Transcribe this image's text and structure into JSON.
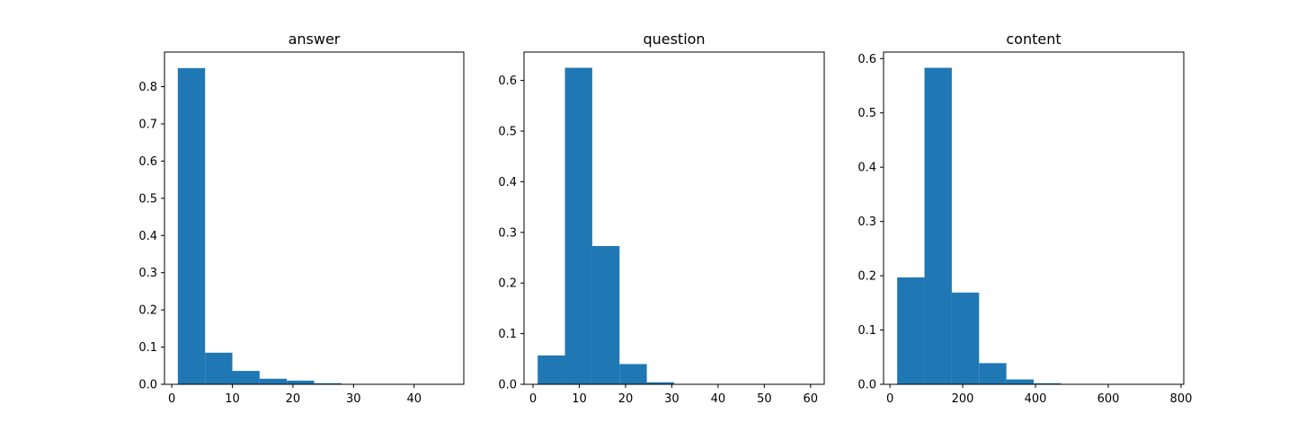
{
  "chart_data": [
    {
      "type": "bar",
      "title": "answer",
      "xlabel": "",
      "ylabel": "",
      "bins": [
        [
          1.0,
          5.5,
          0.85
        ],
        [
          5.5,
          10.0,
          0.085
        ],
        [
          10.0,
          14.5,
          0.036
        ],
        [
          14.5,
          19.0,
          0.015
        ],
        [
          19.0,
          23.5,
          0.01
        ],
        [
          23.5,
          28.0,
          0.003
        ],
        [
          28.0,
          32.5,
          0.0005
        ],
        [
          32.5,
          37.0,
          0.0002
        ],
        [
          37.0,
          41.5,
          0.0001
        ],
        [
          41.5,
          46.0,
          0.0001
        ]
      ],
      "xlim": [
        -1.2,
        48.2
      ],
      "ylim": [
        0,
        0.893
      ],
      "xticks": [
        0,
        10,
        20,
        30,
        40
      ],
      "yticks": [
        0.0,
        0.1,
        0.2,
        0.3,
        0.4,
        0.5,
        0.6,
        0.7,
        0.8
      ],
      "ytick_decimals": 1,
      "color": "#1f77b4"
    },
    {
      "type": "bar",
      "title": "question",
      "xlabel": "",
      "ylabel": "",
      "bins": [
        [
          1.0,
          6.9,
          0.057
        ],
        [
          6.9,
          12.8,
          0.625
        ],
        [
          12.8,
          18.7,
          0.273
        ],
        [
          18.7,
          24.6,
          0.04
        ],
        [
          24.6,
          30.5,
          0.004
        ],
        [
          30.5,
          36.4,
          0.0005
        ],
        [
          36.4,
          42.3,
          0.0002
        ],
        [
          42.3,
          48.2,
          0.0001
        ],
        [
          48.2,
          54.1,
          0.0001
        ],
        [
          54.1,
          60.0,
          0.0001
        ]
      ],
      "xlim": [
        -1.95,
        62.95
      ],
      "ylim": [
        0,
        0.656
      ],
      "xticks": [
        0,
        10,
        20,
        30,
        40,
        50,
        60
      ],
      "yticks": [
        0.0,
        0.1,
        0.2,
        0.3,
        0.4,
        0.5,
        0.6
      ],
      "ytick_decimals": 1,
      "color": "#1f77b4"
    },
    {
      "type": "bar",
      "title": "content",
      "xlabel": "",
      "ylabel": "",
      "bins": [
        [
          20,
          95,
          0.197
        ],
        [
          95,
          170,
          0.583
        ],
        [
          170,
          245,
          0.169
        ],
        [
          245,
          320,
          0.039
        ],
        [
          320,
          395,
          0.009
        ],
        [
          395,
          470,
          0.002
        ],
        [
          470,
          545,
          0.0003
        ],
        [
          545,
          620,
          0.0001
        ],
        [
          620,
          695,
          0.0001
        ],
        [
          695,
          770,
          0.0001
        ]
      ],
      "xlim": [
        -17.5,
        807.5
      ],
      "ylim": [
        0,
        0.612
      ],
      "xticks": [
        0,
        200,
        400,
        600,
        800
      ],
      "yticks": [
        0.0,
        0.1,
        0.2,
        0.3,
        0.4,
        0.5,
        0.6
      ],
      "ytick_decimals": 1,
      "color": "#1f77b4"
    }
  ]
}
